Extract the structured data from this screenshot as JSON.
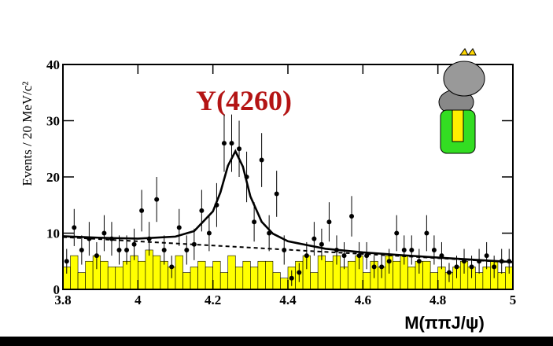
{
  "chart_data": {
    "type": "scatter",
    "annotation": "Y(4260)",
    "x_label": "M(ππJ/ψ)",
    "y_label": "Events / 20 MeV/c²",
    "xlim": [
      3.8,
      5.0
    ],
    "ylim": [
      0,
      40
    ],
    "xticks": [
      3.8,
      4,
      4.2,
      4.4,
      4.6,
      4.8,
      5
    ],
    "yticks": [
      0,
      10,
      20,
      30,
      40
    ],
    "x": [
      3.81,
      3.83,
      3.85,
      3.87,
      3.89,
      3.91,
      3.93,
      3.95,
      3.97,
      3.99,
      4.01,
      4.03,
      4.05,
      4.07,
      4.09,
      4.11,
      4.13,
      4.15,
      4.17,
      4.19,
      4.21,
      4.23,
      4.25,
      4.27,
      4.29,
      4.31,
      4.33,
      4.35,
      4.37,
      4.39,
      4.41,
      4.43,
      4.45,
      4.47,
      4.49,
      4.51,
      4.53,
      4.55,
      4.57,
      4.59,
      4.61,
      4.63,
      4.65,
      4.67,
      4.69,
      4.71,
      4.73,
      4.75,
      4.77,
      4.79,
      4.81,
      4.83,
      4.85,
      4.87,
      4.89,
      4.91,
      4.93,
      4.95,
      4.97,
      4.99
    ],
    "series": [
      {
        "kind": "step",
        "color": "#ffff00",
        "values": [
          4,
          6,
          3,
          5,
          6,
          5,
          4,
          4,
          5,
          6,
          5,
          7,
          6,
          5,
          4,
          6,
          3,
          4,
          5,
          4,
          5,
          3,
          6,
          4,
          5,
          4,
          5,
          5,
          3,
          2,
          4,
          5,
          6,
          3,
          6,
          5,
          6,
          4,
          5,
          6,
          3,
          5,
          4,
          6,
          5,
          6,
          4,
          5,
          5,
          3,
          4,
          3,
          4,
          5,
          4,
          3,
          4,
          5,
          3,
          4
        ]
      },
      {
        "kind": "errorbar",
        "color": "#000000",
        "values": [
          5,
          11,
          7,
          9,
          6,
          10,
          9,
          7,
          7,
          8,
          14,
          9,
          16,
          7,
          4,
          11,
          7,
          8,
          14,
          10,
          15,
          26,
          26,
          25,
          20,
          12,
          23,
          10,
          17,
          7,
          2,
          3,
          6,
          9,
          8,
          12,
          7,
          6,
          13,
          6,
          6,
          4,
          4,
          5,
          10,
          7,
          7,
          5,
          10,
          7,
          6,
          3,
          4,
          5,
          4,
          5,
          6,
          4,
          5,
          5
        ],
        "errors": [
          2.2,
          3.3,
          2.6,
          3.0,
          2.4,
          3.2,
          3.0,
          2.6,
          2.6,
          2.8,
          3.7,
          3.0,
          4.0,
          2.6,
          2.0,
          3.3,
          2.6,
          2.8,
          3.7,
          3.2,
          3.9,
          5.1,
          5.1,
          5.0,
          4.5,
          3.5,
          4.8,
          3.2,
          4.1,
          2.6,
          1.4,
          1.7,
          2.4,
          3.0,
          2.8,
          3.5,
          2.6,
          2.4,
          3.6,
          2.4,
          2.4,
          2.0,
          2.0,
          2.2,
          3.2,
          2.6,
          2.6,
          2.2,
          3.2,
          2.6,
          2.4,
          1.7,
          2.0,
          2.2,
          2.0,
          2.2,
          2.4,
          2.0,
          2.2,
          2.2
        ]
      }
    ],
    "fits": [
      {
        "dashed": false,
        "x": [
          3.8,
          3.9,
          4.0,
          4.1,
          4.15,
          4.2,
          4.22,
          4.24,
          4.26,
          4.28,
          4.3,
          4.33,
          4.36,
          4.4,
          4.5,
          4.6,
          4.7,
          4.8,
          4.9,
          5.0
        ],
        "values": [
          9.45,
          9.18,
          9.03,
          9.39,
          10.37,
          13.87,
          17.25,
          21.98,
          24.58,
          21.83,
          16.52,
          12.02,
          9.9,
          8.56,
          7.23,
          6.58,
          6.1,
          5.66,
          5.26,
          4.86
        ]
      },
      {
        "dashed": true,
        "x": [
          3.8,
          5.0
        ],
        "values": [
          9.3,
          4.8
        ]
      }
    ]
  }
}
